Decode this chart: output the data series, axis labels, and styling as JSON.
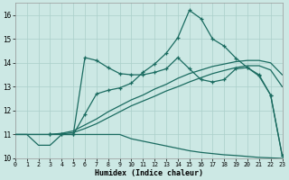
{
  "xlabel": "Humidex (Indice chaleur)",
  "bg_color": "#cce8e4",
  "grid_color": "#aacfca",
  "line_color": "#1a6b60",
  "xlim": [
    0,
    23
  ],
  "ylim": [
    10,
    16.5
  ],
  "xticks": [
    0,
    1,
    2,
    3,
    4,
    5,
    6,
    7,
    8,
    9,
    10,
    11,
    12,
    13,
    14,
    15,
    16,
    17,
    18,
    19,
    20,
    21,
    22,
    23
  ],
  "yticks": [
    10,
    11,
    12,
    13,
    14,
    15,
    16
  ],
  "curve_bottom_x": [
    0,
    1,
    2,
    3,
    4,
    5,
    6,
    7,
    8,
    9,
    10,
    11,
    12,
    13,
    14,
    15,
    16,
    17,
    18,
    19,
    20,
    21,
    22,
    23
  ],
  "curve_bottom_y": [
    11.0,
    11.0,
    10.55,
    10.55,
    11.0,
    11.0,
    11.0,
    11.0,
    11.0,
    11.0,
    10.82,
    10.72,
    10.62,
    10.52,
    10.42,
    10.32,
    10.25,
    10.2,
    10.15,
    10.12,
    10.08,
    10.04,
    10.02,
    10.0
  ],
  "curve_line1_x": [
    0,
    1,
    2,
    3,
    4,
    5,
    6,
    7,
    8,
    9,
    10,
    11,
    12,
    13,
    14,
    15,
    16,
    17,
    18,
    19,
    20,
    21,
    22,
    23
  ],
  "curve_line1_y": [
    11.0,
    11.0,
    11.0,
    11.0,
    11.05,
    11.15,
    11.4,
    11.65,
    11.95,
    12.2,
    12.45,
    12.65,
    12.9,
    13.1,
    13.35,
    13.55,
    13.7,
    13.85,
    13.95,
    14.05,
    14.1,
    14.1,
    14.0,
    13.5
  ],
  "curve_line2_x": [
    0,
    1,
    2,
    3,
    4,
    5,
    6,
    7,
    8,
    9,
    10,
    11,
    12,
    13,
    14,
    15,
    16,
    17,
    18,
    19,
    20,
    21,
    22,
    23
  ],
  "curve_line2_y": [
    11.0,
    11.0,
    11.0,
    11.0,
    11.02,
    11.08,
    11.25,
    11.45,
    11.7,
    11.95,
    12.2,
    12.4,
    12.6,
    12.82,
    13.0,
    13.2,
    13.38,
    13.55,
    13.68,
    13.8,
    13.88,
    13.88,
    13.7,
    13.0
  ],
  "curve_wavy_x": [
    3,
    4,
    5,
    6,
    7,
    8,
    9,
    10,
    11,
    12,
    13,
    14,
    15,
    16,
    17,
    18,
    19,
    20,
    21,
    22,
    23
  ],
  "curve_wavy_y": [
    11.0,
    11.0,
    11.0,
    14.22,
    14.1,
    13.8,
    13.55,
    13.5,
    13.5,
    13.6,
    13.75,
    14.22,
    13.75,
    13.3,
    13.2,
    13.3,
    13.75,
    13.8,
    13.45,
    12.65,
    10.1
  ],
  "curve_top_x": [
    3,
    4,
    5,
    6,
    7,
    8,
    9,
    10,
    11,
    12,
    13,
    14,
    15,
    16,
    17,
    18,
    19,
    20,
    21,
    22,
    23
  ],
  "curve_top_y": [
    11.0,
    11.0,
    11.0,
    11.85,
    12.7,
    12.85,
    12.95,
    13.15,
    13.6,
    13.95,
    14.4,
    15.05,
    16.2,
    15.85,
    15.0,
    14.7,
    14.2,
    13.8,
    13.5,
    12.65,
    10.1
  ]
}
